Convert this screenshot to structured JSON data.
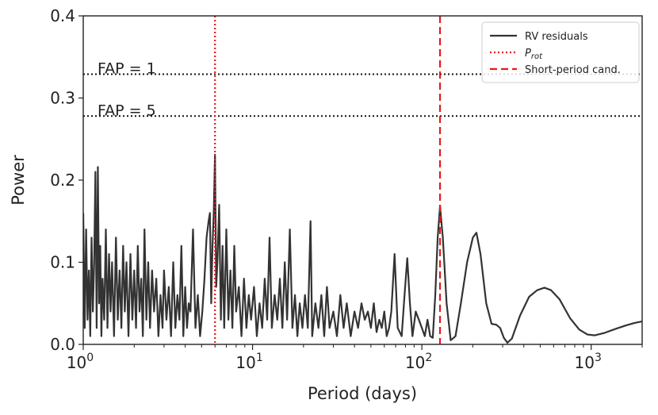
{
  "chart_data": {
    "type": "line",
    "title": "",
    "xlabel": "Period (days)",
    "ylabel": "Power",
    "xscale": "log",
    "xlim": [
      1,
      2000
    ],
    "ylim": [
      0,
      0.4
    ],
    "x_ticks": [
      {
        "value": 1,
        "base": "10",
        "exp": "0"
      },
      {
        "value": 10,
        "base": "10",
        "exp": "1"
      },
      {
        "value": 100,
        "base": "10",
        "exp": "2"
      },
      {
        "value": 1000,
        "base": "10",
        "exp": "3"
      }
    ],
    "y_ticks": [
      {
        "value": 0.0,
        "label": "0.0"
      },
      {
        "value": 0.1,
        "label": "0.1"
      },
      {
        "value": 0.2,
        "label": "0.2"
      },
      {
        "value": 0.3,
        "label": "0.3"
      },
      {
        "value": 0.4,
        "label": "0.4"
      }
    ],
    "fap_lines": [
      {
        "label": "FAP = 1",
        "value": 0.329
      },
      {
        "label": "FAP = 5",
        "value": 0.278
      }
    ],
    "vlines": [
      {
        "name": "P_rot",
        "x": 6.0,
        "style": "dotted",
        "color": "#e41a1c"
      },
      {
        "name": "Short-period cand.",
        "x": 128,
        "style": "dashed",
        "color": "#e41a1c"
      }
    ],
    "legend": {
      "placement": "top-right",
      "entries": [
        {
          "label": "RV residuals",
          "style": "solid",
          "color": "#333333"
        },
        {
          "label": "P",
          "sub": "rot",
          "style": "dotted",
          "color": "#e41a1c"
        },
        {
          "label": "Short-period cand.",
          "style": "dashed",
          "color": "#e41a1c"
        }
      ]
    },
    "series": [
      {
        "name": "RV residuals",
        "color": "#333333",
        "points": [
          [
            1.0,
            0.16
          ],
          [
            1.02,
            0.02
          ],
          [
            1.04,
            0.14
          ],
          [
            1.06,
            0.03
          ],
          [
            1.08,
            0.09
          ],
          [
            1.1,
            0.01
          ],
          [
            1.12,
            0.13
          ],
          [
            1.14,
            0.04
          ],
          [
            1.16,
            0.1
          ],
          [
            1.18,
            0.21
          ],
          [
            1.2,
            0.02
          ],
          [
            1.22,
            0.216
          ],
          [
            1.24,
            0.05
          ],
          [
            1.26,
            0.12
          ],
          [
            1.28,
            0.01
          ],
          [
            1.3,
            0.08
          ],
          [
            1.33,
            0.03
          ],
          [
            1.36,
            0.14
          ],
          [
            1.39,
            0.02
          ],
          [
            1.42,
            0.11
          ],
          [
            1.45,
            0.04
          ],
          [
            1.48,
            0.1
          ],
          [
            1.52,
            0.01
          ],
          [
            1.56,
            0.13
          ],
          [
            1.6,
            0.03
          ],
          [
            1.64,
            0.09
          ],
          [
            1.68,
            0.02
          ],
          [
            1.72,
            0.12
          ],
          [
            1.76,
            0.04
          ],
          [
            1.8,
            0.1
          ],
          [
            1.85,
            0.01
          ],
          [
            1.9,
            0.11
          ],
          [
            1.95,
            0.03
          ],
          [
            2.0,
            0.09
          ],
          [
            2.05,
            0.02
          ],
          [
            2.1,
            0.12
          ],
          [
            2.15,
            0.04
          ],
          [
            2.2,
            0.08
          ],
          [
            2.25,
            0.01
          ],
          [
            2.3,
            0.14
          ],
          [
            2.36,
            0.03
          ],
          [
            2.42,
            0.1
          ],
          [
            2.48,
            0.02
          ],
          [
            2.55,
            0.09
          ],
          [
            2.62,
            0.04
          ],
          [
            2.7,
            0.08
          ],
          [
            2.78,
            0.01
          ],
          [
            2.86,
            0.06
          ],
          [
            2.94,
            0.02
          ],
          [
            3.0,
            0.09
          ],
          [
            3.1,
            0.03
          ],
          [
            3.2,
            0.07
          ],
          [
            3.3,
            0.01
          ],
          [
            3.4,
            0.1
          ],
          [
            3.5,
            0.02
          ],
          [
            3.6,
            0.06
          ],
          [
            3.7,
            0.03
          ],
          [
            3.8,
            0.12
          ],
          [
            3.9,
            0.01
          ],
          [
            4.0,
            0.07
          ],
          [
            4.1,
            0.02
          ],
          [
            4.2,
            0.05
          ],
          [
            4.3,
            0.04
          ],
          [
            4.45,
            0.14
          ],
          [
            4.6,
            0.02
          ],
          [
            4.75,
            0.06
          ],
          [
            4.9,
            0.01
          ],
          [
            5.05,
            0.04
          ],
          [
            5.2,
            0.08
          ],
          [
            5.35,
            0.13
          ],
          [
            5.5,
            0.15
          ],
          [
            5.6,
            0.16
          ],
          [
            5.7,
            0.05
          ],
          [
            5.8,
            0.12
          ],
          [
            5.9,
            0.16
          ],
          [
            6.0,
            0.231
          ],
          [
            6.1,
            0.07
          ],
          [
            6.2,
            0.1
          ],
          [
            6.35,
            0.17
          ],
          [
            6.5,
            0.03
          ],
          [
            6.65,
            0.12
          ],
          [
            6.8,
            0.02
          ],
          [
            7.0,
            0.14
          ],
          [
            7.2,
            0.03
          ],
          [
            7.4,
            0.09
          ],
          [
            7.6,
            0.02
          ],
          [
            7.8,
            0.12
          ],
          [
            8.0,
            0.04
          ],
          [
            8.3,
            0.07
          ],
          [
            8.6,
            0.01
          ],
          [
            8.9,
            0.08
          ],
          [
            9.2,
            0.02
          ],
          [
            9.5,
            0.06
          ],
          [
            9.8,
            0.03
          ],
          [
            10.2,
            0.07
          ],
          [
            10.6,
            0.01
          ],
          [
            11.0,
            0.05
          ],
          [
            11.4,
            0.02
          ],
          [
            11.8,
            0.08
          ],
          [
            12.2,
            0.03
          ],
          [
            12.6,
            0.13
          ],
          [
            13.0,
            0.02
          ],
          [
            13.5,
            0.06
          ],
          [
            14.0,
            0.03
          ],
          [
            14.5,
            0.08
          ],
          [
            15.0,
            0.02
          ],
          [
            15.5,
            0.1
          ],
          [
            16.0,
            0.03
          ],
          [
            16.6,
            0.14
          ],
          [
            17.2,
            0.02
          ],
          [
            17.8,
            0.06
          ],
          [
            18.4,
            0.01
          ],
          [
            19.0,
            0.05
          ],
          [
            19.7,
            0.02
          ],
          [
            20.4,
            0.06
          ],
          [
            21.2,
            0.02
          ],
          [
            22.0,
            0.15
          ],
          [
            22.5,
            0.01
          ],
          [
            23.5,
            0.05
          ],
          [
            24.5,
            0.02
          ],
          [
            25.5,
            0.06
          ],
          [
            26.5,
            0.01
          ],
          [
            27.5,
            0.07
          ],
          [
            28.5,
            0.02
          ],
          [
            30,
            0.04
          ],
          [
            31.5,
            0.01
          ],
          [
            33,
            0.06
          ],
          [
            34.5,
            0.02
          ],
          [
            36,
            0.05
          ],
          [
            38,
            0.01
          ],
          [
            40,
            0.04
          ],
          [
            42,
            0.02
          ],
          [
            44,
            0.05
          ],
          [
            46,
            0.03
          ],
          [
            48,
            0.04
          ],
          [
            50,
            0.02
          ],
          [
            52,
            0.05
          ],
          [
            54,
            0.015
          ],
          [
            56,
            0.03
          ],
          [
            58,
            0.02
          ],
          [
            60,
            0.04
          ],
          [
            62,
            0.01
          ],
          [
            64,
            0.02
          ],
          [
            66,
            0.04
          ],
          [
            69,
            0.11
          ],
          [
            72,
            0.02
          ],
          [
            76,
            0.01
          ],
          [
            79,
            0.06
          ],
          [
            82,
            0.105
          ],
          [
            85,
            0.05
          ],
          [
            88,
            0.01
          ],
          [
            92,
            0.04
          ],
          [
            96,
            0.03
          ],
          [
            100,
            0.02
          ],
          [
            104,
            0.01
          ],
          [
            108,
            0.03
          ],
          [
            112,
            0.01
          ],
          [
            116,
            0.008
          ],
          [
            120,
            0.06
          ],
          [
            124,
            0.13
          ],
          [
            128,
            0.168
          ],
          [
            133,
            0.13
          ],
          [
            140,
            0.05
          ],
          [
            148,
            0.005
          ],
          [
            158,
            0.01
          ],
          [
            170,
            0.05
          ],
          [
            185,
            0.1
          ],
          [
            200,
            0.13
          ],
          [
            210,
            0.136
          ],
          [
            222,
            0.11
          ],
          [
            240,
            0.05
          ],
          [
            258,
            0.025
          ],
          [
            275,
            0.024
          ],
          [
            290,
            0.02
          ],
          [
            305,
            0.008
          ],
          [
            320,
            0.002
          ],
          [
            340,
            0.007
          ],
          [
            380,
            0.035
          ],
          [
            430,
            0.058
          ],
          [
            480,
            0.066
          ],
          [
            530,
            0.069
          ],
          [
            580,
            0.066
          ],
          [
            650,
            0.055
          ],
          [
            750,
            0.032
          ],
          [
            850,
            0.018
          ],
          [
            950,
            0.012
          ],
          [
            1050,
            0.011
          ],
          [
            1200,
            0.014
          ],
          [
            1400,
            0.019
          ],
          [
            1600,
            0.023
          ],
          [
            1800,
            0.026
          ],
          [
            2000,
            0.028
          ]
        ]
      }
    ]
  }
}
